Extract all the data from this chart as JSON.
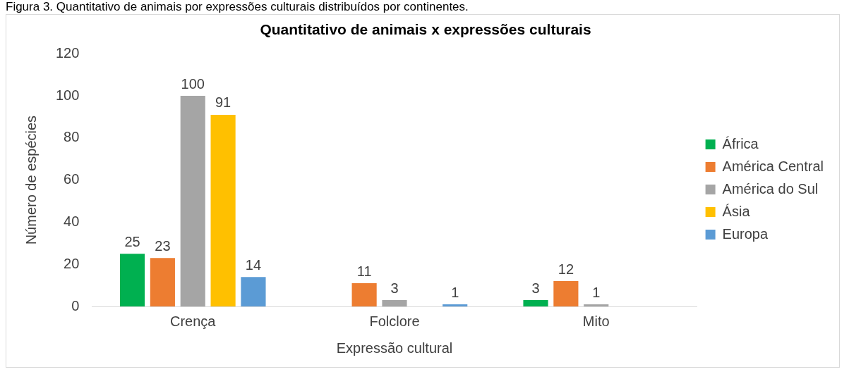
{
  "chart_data": {
    "type": "bar",
    "title": "Quantitativo de animais x expressões culturais",
    "xlabel": "Expressão cultural",
    "ylabel": "Número de espécies",
    "annotations": [
      "Figura 3. Quantitativo de animais por expressões culturais distribuídos por continentes."
    ],
    "categories": [
      "Crença",
      "Folclore",
      "Mito"
    ],
    "series": [
      {
        "name": "África",
        "color": "#00b050",
        "values": [
          25,
          null,
          3
        ]
      },
      {
        "name": "América Central",
        "color": "#ed7d31",
        "values": [
          23,
          11,
          12
        ]
      },
      {
        "name": "América do Sul",
        "color": "#a5a5a5",
        "values": [
          100,
          3,
          1
        ]
      },
      {
        "name": "Ásia",
        "color": "#ffc000",
        "values": [
          91,
          null,
          null
        ]
      },
      {
        "name": "Europa",
        "color": "#5b9bd5",
        "values": [
          14,
          1,
          null
        ]
      }
    ],
    "ylim": [
      0,
      120
    ],
    "yticks": [
      0,
      20,
      40,
      60,
      80,
      100,
      120
    ],
    "grid": false,
    "legend": "right",
    "data_labels": true
  }
}
